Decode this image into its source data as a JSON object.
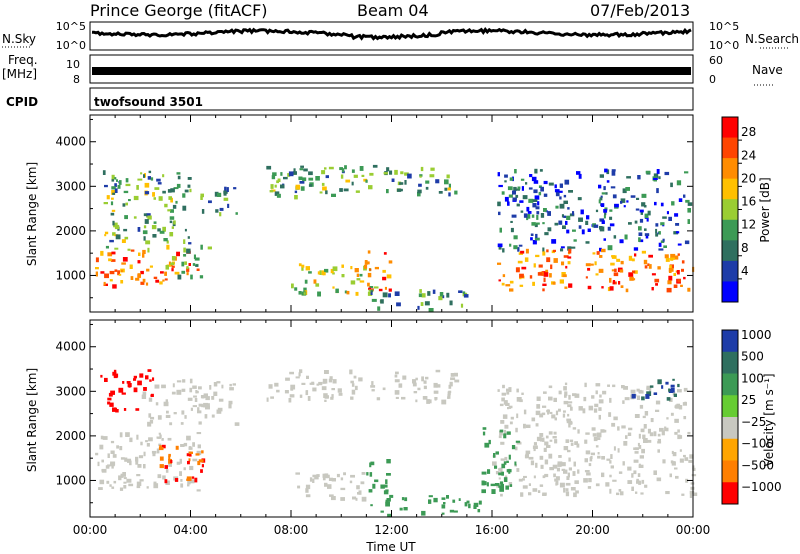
{
  "header": {
    "station": "Prince George (fitACF)",
    "beam": "Beam 04",
    "date": "07/Feb/2013"
  },
  "strips": {
    "nsky_label": "N.Sky",
    "nsky_ticks": [
      "10^5",
      "10^0"
    ],
    "nsearch_label": "N.Search",
    "freq_label_line1": "Freq.",
    "freq_label_line2": "[MHz]",
    "freq_ticks": [
      "10",
      "8"
    ],
    "nave_label": "Nave",
    "nave_ticks": [
      "60",
      "0"
    ],
    "cpid_label": "CPID",
    "cpid_value": "twofsound 3501"
  },
  "colors": {
    "power": [
      "#0000ff",
      "#1e3ca8",
      "#2f6f5f",
      "#3c9a55",
      "#9acd32",
      "#ffc000",
      "#ff8c00",
      "#ff4500",
      "#ff0000"
    ],
    "velocity": [
      "#1e3ca8",
      "#2f6f5f",
      "#3c9a55",
      "#66cc33",
      "#c8c8c0",
      "#ffa500",
      "#ff7f00",
      "#ff0000"
    ]
  },
  "chart_data": [
    {
      "type": "heatmap",
      "panel": "power",
      "ylabel": "Slant Range [km]",
      "yticks": [
        "1000",
        "2000",
        "3000",
        "4000"
      ],
      "ylim": [
        180,
        4600
      ],
      "xlim": [
        "00:00",
        "24:00"
      ],
      "colorbar_label": "Power [dB]",
      "colorbar_ticks": [
        "4",
        "8",
        "12",
        "16",
        "20",
        "24",
        "28"
      ],
      "colorbar_range": [
        0,
        32
      ],
      "echo_regions": [
        {
          "name": "morning-band",
          "x": [
            0.2,
            4.3
          ],
          "y": [
            800,
            1600
          ],
          "level": 26
        },
        {
          "name": "morning-upper",
          "x": [
            0.5,
            4.0
          ],
          "y": [
            1600,
            3400
          ],
          "level": 12
        },
        {
          "name": "dawn-patch",
          "x": [
            3.0,
            4.7
          ],
          "y": [
            900,
            1700
          ],
          "level": 14
        },
        {
          "name": "morning-top",
          "x": [
            4.2,
            5.8
          ],
          "y": [
            2400,
            3000
          ],
          "level": 10
        },
        {
          "name": "midday-band",
          "x": [
            8.0,
            11.3
          ],
          "y": [
            600,
            1300
          ],
          "level": 18
        },
        {
          "name": "noon-spike",
          "x": [
            10.9,
            11.9
          ],
          "y": [
            700,
            1600
          ],
          "level": 28
        },
        {
          "name": "noon-low",
          "x": [
            11.0,
            15.0
          ],
          "y": [
            250,
            700
          ],
          "level": 10
        },
        {
          "name": "midday-top",
          "x": [
            7.0,
            14.5
          ],
          "y": [
            2800,
            3500
          ],
          "level": 12
        },
        {
          "name": "afternoon-upper",
          "x": [
            16.2,
            23.8
          ],
          "y": [
            1600,
            3400
          ],
          "level": 6
        },
        {
          "name": "evening-band",
          "x": [
            16.0,
            24.0
          ],
          "y": [
            700,
            1600
          ],
          "level": 26
        }
      ]
    },
    {
      "type": "heatmap",
      "panel": "velocity",
      "ylabel": "Slant Range [km]",
      "yticks": [
        "1000",
        "2000",
        "3000",
        "4000"
      ],
      "ylim": [
        180,
        4600
      ],
      "xlabel": "Time UT",
      "xticks": [
        "00:00",
        "04:00",
        "08:00",
        "12:00",
        "16:00",
        "20:00",
        "00:00"
      ],
      "xlim": [
        "00:00",
        "24:00"
      ],
      "colorbar_label": "Velocity [m s⁻¹]",
      "colorbar_ticks": [
        "1000",
        "500",
        "100",
        "25",
        "−25",
        "−100",
        "−500",
        "−1000"
      ],
      "echo_regions": [
        {
          "name": "morning-grey",
          "x": [
            0.2,
            4.3
          ],
          "y": [
            800,
            2100
          ],
          "level": 0
        },
        {
          "name": "morning-orange",
          "x": [
            2.6,
            4.6
          ],
          "y": [
            1000,
            1800
          ],
          "level": -300
        },
        {
          "name": "morning-upper-red",
          "x": [
            0.4,
            2.5
          ],
          "y": [
            2600,
            3500
          ],
          "level": -800
        },
        {
          "name": "morning-upper-grey",
          "x": [
            2.0,
            5.8
          ],
          "y": [
            2300,
            3300
          ],
          "level": 0
        },
        {
          "name": "midday-grey",
          "x": [
            8.0,
            11.0
          ],
          "y": [
            600,
            1200
          ],
          "level": 0
        },
        {
          "name": "noon-spike",
          "x": [
            10.8,
            11.8
          ],
          "y": [
            700,
            1600
          ],
          "level": 200
        },
        {
          "name": "noon-low",
          "x": [
            11.0,
            15.5
          ],
          "y": [
            250,
            700
          ],
          "level": 100
        },
        {
          "name": "midday-top-grey",
          "x": [
            7.0,
            14.5
          ],
          "y": [
            2800,
            3500
          ],
          "level": 0
        },
        {
          "name": "evening-grey",
          "x": [
            16.0,
            24.0
          ],
          "y": [
            700,
            1700
          ],
          "level": 0
        },
        {
          "name": "evening-upper",
          "x": [
            16.2,
            23.8
          ],
          "y": [
            1700,
            3200
          ],
          "level": 0
        },
        {
          "name": "evening-green",
          "x": [
            15.5,
            17.0
          ],
          "y": [
            800,
            2200
          ],
          "level": 150
        },
        {
          "name": "late-blue",
          "x": [
            21.5,
            23.5
          ],
          "y": [
            2800,
            3300
          ],
          "level": 700
        }
      ]
    }
  ]
}
